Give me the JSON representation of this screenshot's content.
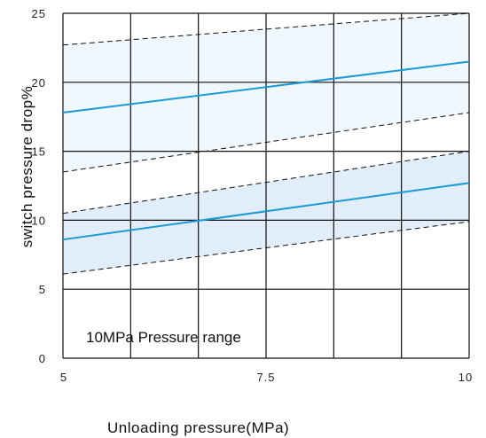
{
  "chart_data": {
    "type": "line",
    "title": "",
    "xlabel": "Unloading pressure(MPa)",
    "ylabel": "switch pressure drop%",
    "annotation": "10MPa Pressure range",
    "xlim": [
      5,
      10
    ],
    "ylim": [
      0,
      25
    ],
    "x_ticks": [
      "5",
      "7.5",
      "10"
    ],
    "y_ticks": [
      "0",
      "5",
      "10",
      "15",
      "20",
      "25"
    ],
    "grid": true,
    "series": [
      {
        "x": [
          5,
          10
        ],
        "center": [
          17.8,
          21.5
        ],
        "upper": [
          22.7,
          25
        ],
        "lower": [
          13.5,
          17.8
        ],
        "color": "#1a9ad6",
        "band_fill": "#f1f8fd"
      },
      {
        "x": [
          5,
          10
        ],
        "center": [
          8.6,
          12.7
        ],
        "upper": [
          10.5,
          15
        ],
        "lower": [
          6.1,
          9.9
        ],
        "color": "#1a9ad6",
        "band_fill": "#e1eef9"
      }
    ]
  }
}
